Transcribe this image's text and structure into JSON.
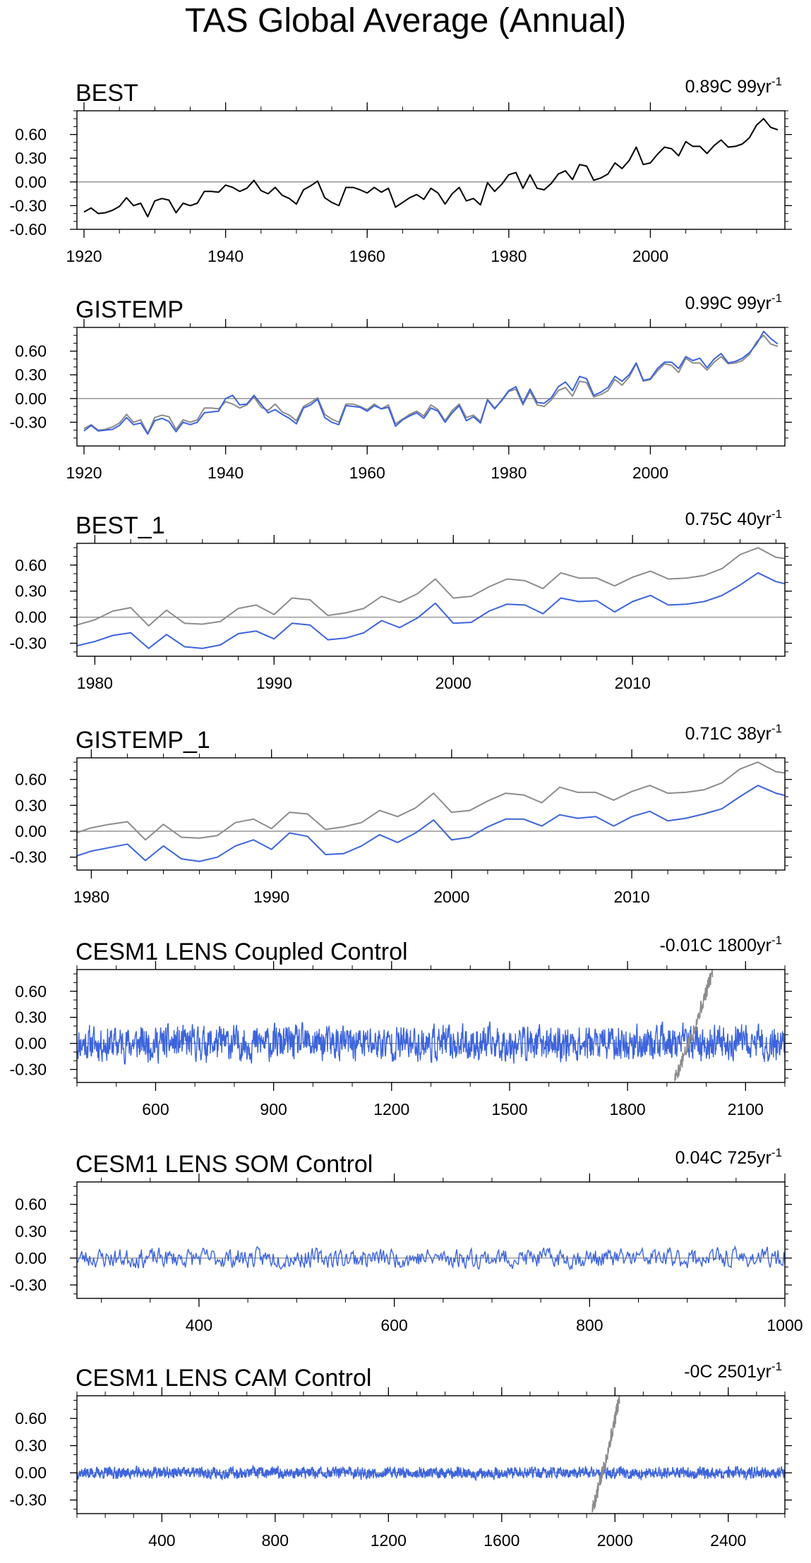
{
  "title": "TAS Global Average (Annual)",
  "colors": {
    "observed": "#000000",
    "reference": "#8c8c8c",
    "model": "#3c64dc",
    "zero_line": "#8c8c8c"
  },
  "chart_data": [
    {
      "type": "line",
      "title": "BEST",
      "annotation": "0.89C 99yr",
      "annotation_sup": "-1",
      "xlim": [
        1919,
        2019
      ],
      "ylim": [
        -0.6,
        0.9
      ],
      "yticks": [
        -0.6,
        -0.3,
        0.0,
        0.3,
        0.6
      ],
      "ytick_labels": [
        "-0.60",
        "-0.30",
        "0.00",
        "0.30",
        "0.60"
      ],
      "xticks": [
        1920,
        1940,
        1960,
        1980,
        2000
      ],
      "xtick_labels": [
        "1920",
        "1940",
        "1960",
        "1980",
        "2000"
      ],
      "xminor_step": 5,
      "x_start": 1920,
      "x_step": 1,
      "series": [
        {
          "color": "#000000",
          "values": [
            -0.38,
            -0.33,
            -0.4,
            -0.39,
            -0.36,
            -0.31,
            -0.2,
            -0.3,
            -0.27,
            -0.44,
            -0.24,
            -0.21,
            -0.23,
            -0.39,
            -0.27,
            -0.3,
            -0.27,
            -0.12,
            -0.12,
            -0.13,
            -0.04,
            -0.07,
            -0.12,
            -0.08,
            0.02,
            -0.11,
            -0.15,
            -0.07,
            -0.17,
            -0.21,
            -0.28,
            -0.1,
            -0.05,
            0.01,
            -0.2,
            -0.26,
            -0.3,
            -0.07,
            -0.07,
            -0.1,
            -0.14,
            -0.07,
            -0.13,
            -0.08,
            -0.32,
            -0.26,
            -0.2,
            -0.16,
            -0.22,
            -0.08,
            -0.14,
            -0.28,
            -0.15,
            -0.07,
            -0.24,
            -0.21,
            -0.29,
            -0.01,
            -0.12,
            -0.03,
            0.09,
            0.12,
            -0.08,
            0.09,
            -0.08,
            -0.1,
            -0.02,
            0.1,
            0.14,
            0.03,
            0.22,
            0.2,
            0.02,
            0.05,
            0.1,
            0.24,
            0.17,
            0.27,
            0.44,
            0.22,
            0.24,
            0.35,
            0.44,
            0.42,
            0.33,
            0.51,
            0.45,
            0.45,
            0.36,
            0.46,
            0.53,
            0.44,
            0.45,
            0.48,
            0.56,
            0.72,
            0.8,
            0.69,
            0.66
          ]
        }
      ]
    },
    {
      "type": "line",
      "title": "GISTEMP",
      "annotation": "0.99C 99yr",
      "annotation_sup": "-1",
      "xlim": [
        1919,
        2019
      ],
      "ylim": [
        -0.6,
        0.9
      ],
      "yticks": [
        -0.3,
        0.0,
        0.3,
        0.6
      ],
      "ytick_labels": [
        "-0.30",
        "0.00",
        "0.30",
        "0.60"
      ],
      "xticks": [
        1920,
        1940,
        1960,
        1980,
        2000
      ],
      "xtick_labels": [
        "1920",
        "1940",
        "1960",
        "1980",
        "2000"
      ],
      "xminor_step": 5,
      "x_start": 1920,
      "x_step": 1,
      "series": [
        {
          "color": "#8c8c8c",
          "values": [
            -0.38,
            -0.33,
            -0.4,
            -0.39,
            -0.36,
            -0.31,
            -0.2,
            -0.3,
            -0.27,
            -0.44,
            -0.24,
            -0.21,
            -0.23,
            -0.39,
            -0.27,
            -0.3,
            -0.27,
            -0.12,
            -0.12,
            -0.13,
            -0.04,
            -0.07,
            -0.12,
            -0.08,
            0.02,
            -0.11,
            -0.15,
            -0.07,
            -0.17,
            -0.21,
            -0.28,
            -0.1,
            -0.05,
            0.01,
            -0.2,
            -0.26,
            -0.3,
            -0.07,
            -0.07,
            -0.1,
            -0.14,
            -0.07,
            -0.13,
            -0.08,
            -0.32,
            -0.26,
            -0.2,
            -0.16,
            -0.22,
            -0.08,
            -0.14,
            -0.28,
            -0.15,
            -0.07,
            -0.24,
            -0.21,
            -0.29,
            -0.01,
            -0.12,
            -0.03,
            0.09,
            0.12,
            -0.08,
            0.09,
            -0.08,
            -0.1,
            -0.02,
            0.1,
            0.14,
            0.03,
            0.22,
            0.2,
            0.02,
            0.05,
            0.1,
            0.24,
            0.17,
            0.27,
            0.44,
            0.22,
            0.24,
            0.35,
            0.44,
            0.42,
            0.33,
            0.51,
            0.45,
            0.45,
            0.36,
            0.46,
            0.53,
            0.44,
            0.45,
            0.48,
            0.56,
            0.72,
            0.8,
            0.69,
            0.66
          ]
        },
        {
          "color": "#3c64dc",
          "values": [
            -0.41,
            -0.34,
            -0.41,
            -0.4,
            -0.39,
            -0.34,
            -0.24,
            -0.33,
            -0.31,
            -0.45,
            -0.28,
            -0.25,
            -0.29,
            -0.42,
            -0.3,
            -0.33,
            -0.3,
            -0.18,
            -0.17,
            -0.16,
            0.0,
            0.04,
            -0.08,
            -0.07,
            0.04,
            -0.07,
            -0.18,
            -0.14,
            -0.2,
            -0.25,
            -0.32,
            -0.12,
            -0.08,
            -0.01,
            -0.24,
            -0.3,
            -0.33,
            -0.09,
            -0.1,
            -0.11,
            -0.16,
            -0.09,
            -0.13,
            -0.11,
            -0.35,
            -0.27,
            -0.22,
            -0.18,
            -0.25,
            -0.12,
            -0.16,
            -0.3,
            -0.18,
            -0.09,
            -0.28,
            -0.23,
            -0.31,
            -0.02,
            -0.13,
            -0.02,
            0.1,
            0.15,
            -0.06,
            0.12,
            -0.05,
            -0.06,
            0.01,
            0.15,
            0.21,
            0.1,
            0.28,
            0.25,
            0.04,
            0.08,
            0.14,
            0.28,
            0.22,
            0.3,
            0.45,
            0.23,
            0.25,
            0.38,
            0.46,
            0.46,
            0.38,
            0.53,
            0.48,
            0.51,
            0.39,
            0.5,
            0.57,
            0.45,
            0.47,
            0.51,
            0.58,
            0.69,
            0.85,
            0.76,
            0.69
          ]
        }
      ]
    },
    {
      "type": "line",
      "title": "BEST_1",
      "annotation": "0.75C 40yr",
      "annotation_sup": "-1",
      "xlim": [
        1979.0,
        2018.5
      ],
      "ylim": [
        -0.45,
        0.85
      ],
      "yticks": [
        -0.3,
        0.0,
        0.3,
        0.6
      ],
      "ytick_labels": [
        "-0.30",
        "0.00",
        "0.30",
        "0.60"
      ],
      "xticks": [
        1980,
        1990,
        2000,
        2010
      ],
      "xtick_labels": [
        "1980",
        "1990",
        "2000",
        "2010"
      ],
      "xminor_step": 2,
      "x_start": 1979,
      "x_step": 1,
      "series": [
        {
          "color": "#8c8c8c",
          "values": [
            -0.09,
            -0.03,
            0.07,
            0.11,
            -0.1,
            0.08,
            -0.07,
            -0.08,
            -0.05,
            0.1,
            0.14,
            0.03,
            0.22,
            0.2,
            0.02,
            0.05,
            0.1,
            0.24,
            0.17,
            0.27,
            0.44,
            0.22,
            0.24,
            0.35,
            0.44,
            0.42,
            0.33,
            0.51,
            0.45,
            0.45,
            0.36,
            0.46,
            0.53,
            0.44,
            0.45,
            0.48,
            0.56,
            0.72,
            0.8,
            0.69,
            0.66
          ]
        },
        {
          "color": "#3c64dc",
          "values": [
            -0.33,
            -0.28,
            -0.21,
            -0.18,
            -0.36,
            -0.2,
            -0.34,
            -0.36,
            -0.32,
            -0.19,
            -0.16,
            -0.25,
            -0.07,
            -0.09,
            -0.26,
            -0.24,
            -0.18,
            -0.04,
            -0.12,
            -0.01,
            0.16,
            -0.07,
            -0.06,
            0.07,
            0.15,
            0.14,
            0.04,
            0.22,
            0.18,
            0.19,
            0.06,
            0.18,
            0.25,
            0.14,
            0.15,
            0.18,
            0.25,
            0.37,
            0.51,
            0.41,
            0.36
          ]
        }
      ]
    },
    {
      "type": "line",
      "title": "GISTEMP_1",
      "annotation": "0.71C 38yr",
      "annotation_sup": "-1",
      "xlim": [
        1979.2,
        2018.5
      ],
      "ylim": [
        -0.45,
        0.85
      ],
      "yticks": [
        -0.3,
        0.0,
        0.3,
        0.6
      ],
      "ytick_labels": [
        "-0.30",
        "0.00",
        "0.30",
        "0.60"
      ],
      "xticks": [
        1980,
        1990,
        2000,
        2010
      ],
      "xtick_labels": [
        "1980",
        "1990",
        "2000",
        "2010"
      ],
      "xminor_step": 2,
      "x_start": 1979,
      "x_step": 1,
      "series": [
        {
          "color": "#8c8c8c",
          "values": [
            -0.03,
            0.04,
            0.08,
            0.11,
            -0.1,
            0.08,
            -0.07,
            -0.08,
            -0.05,
            0.1,
            0.14,
            0.03,
            0.22,
            0.2,
            0.02,
            0.05,
            0.1,
            0.24,
            0.17,
            0.27,
            0.44,
            0.22,
            0.24,
            0.35,
            0.44,
            0.42,
            0.33,
            0.51,
            0.45,
            0.45,
            0.36,
            0.46,
            0.53,
            0.44,
            0.45,
            0.48,
            0.56,
            0.72,
            0.8,
            0.69,
            0.66
          ]
        },
        {
          "color": "#3c64dc",
          "values": [
            -0.3,
            -0.23,
            -0.19,
            -0.15,
            -0.34,
            -0.17,
            -0.32,
            -0.35,
            -0.3,
            -0.17,
            -0.1,
            -0.21,
            -0.02,
            -0.06,
            -0.27,
            -0.26,
            -0.17,
            -0.04,
            -0.13,
            -0.02,
            0.13,
            -0.1,
            -0.07,
            0.05,
            0.14,
            0.14,
            0.06,
            0.19,
            0.15,
            0.17,
            0.06,
            0.17,
            0.23,
            0.12,
            0.15,
            0.2,
            0.26,
            0.4,
            0.53,
            0.44,
            0.39
          ]
        }
      ]
    },
    {
      "type": "line",
      "title": "CESM1 LENS Coupled Control",
      "annotation": "-0.01C 1800yr",
      "annotation_sup": "-1",
      "xlim": [
        400,
        2200
      ],
      "ylim": [
        -0.45,
        0.85
      ],
      "yticks": [
        -0.3,
        0.0,
        0.3,
        0.6
      ],
      "ytick_labels": [
        "-0.30",
        "0.00",
        "0.30",
        "0.60"
      ],
      "xticks": [
        600,
        900,
        1200,
        1500,
        1800,
        2100
      ],
      "xtick_labels": [
        "600",
        "900",
        "1200",
        "1500",
        "1800",
        "2100"
      ],
      "xminor_step": 100,
      "noise": {
        "color": "#3c64dc",
        "x0": 400,
        "x1": 2200,
        "amp": 0.11,
        "clip": [
          -0.37,
          0.25
        ],
        "seed": 11
      },
      "ramp": {
        "color": "#8c8c8c",
        "x0": 1920,
        "x1": 2016,
        "y0": -0.39,
        "y1": 0.82,
        "amp": 0.09,
        "seed": 5
      }
    },
    {
      "type": "line",
      "title": "CESM1 LENS SOM Control",
      "annotation": "0.04C 725yr",
      "annotation_sup": "-1",
      "xlim": [
        275,
        1000
      ],
      "ylim": [
        -0.45,
        0.85
      ],
      "yticks": [
        -0.3,
        0.0,
        0.3,
        0.6
      ],
      "ytick_labels": [
        "-0.30",
        "0.00",
        "0.30",
        "0.60"
      ],
      "xticks": [
        400,
        600,
        800,
        1000
      ],
      "xtick_labels": [
        "400",
        "600",
        "800",
        "1000"
      ],
      "xminor_step": 50,
      "noise": {
        "color": "#3c64dc",
        "x0": 275,
        "x1": 1000,
        "amp": 0.06,
        "clip": [
          -0.26,
          0.25
        ],
        "seed": 23
      }
    },
    {
      "type": "line",
      "title": "CESM1 LENS CAM Control",
      "annotation": "-0C 2501yr",
      "annotation_sup": "-1",
      "xlim": [
        100,
        2600
      ],
      "ylim": [
        -0.45,
        0.85
      ],
      "yticks": [
        -0.3,
        0.0,
        0.3,
        0.6
      ],
      "ytick_labels": [
        "-0.30",
        "0.00",
        "0.30",
        "0.60"
      ],
      "xticks": [
        400,
        800,
        1200,
        1600,
        2000,
        2400
      ],
      "xtick_labels": [
        "400",
        "800",
        "1200",
        "1600",
        "2000",
        "2400"
      ],
      "xminor_step": 100,
      "noise": {
        "color": "#3c64dc",
        "x0": 100,
        "x1": 2600,
        "amp": 0.035,
        "clip": [
          -0.15,
          0.12
        ],
        "seed": 37
      },
      "ramp": {
        "color": "#8c8c8c",
        "x0": 1920,
        "x1": 2016,
        "y0": -0.39,
        "y1": 0.82,
        "amp": 0.09,
        "seed": 5
      }
    }
  ]
}
